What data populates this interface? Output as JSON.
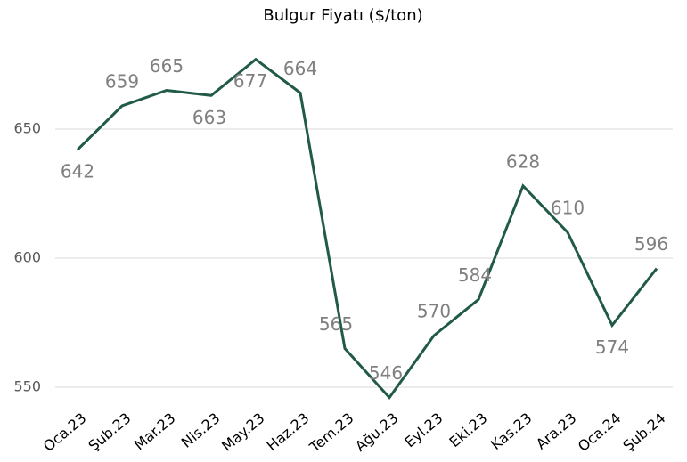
{
  "chart_data": {
    "type": "line",
    "title": "Bulgur Fiyatı ($/ton)",
    "categories": [
      "Oca.23",
      "Şub.23",
      "Mar.23",
      "Nis.23",
      "May.23",
      "Haz.23",
      "Tem.23",
      "Ağu.23",
      "Eyl.23",
      "Eki.23",
      "Kas.23",
      "Ara.23",
      "Oca.24",
      "Şub.24"
    ],
    "series": [
      {
        "name": "Bulgur Fiyatı",
        "color": "#215a47",
        "values": [
          642,
          659,
          665,
          663,
          677,
          664,
          565,
          546,
          570,
          584,
          628,
          610,
          574,
          596
        ]
      }
    ],
    "ylim": [
      545,
      680
    ],
    "yticks": [
      550,
      600,
      650
    ],
    "grid": true
  }
}
